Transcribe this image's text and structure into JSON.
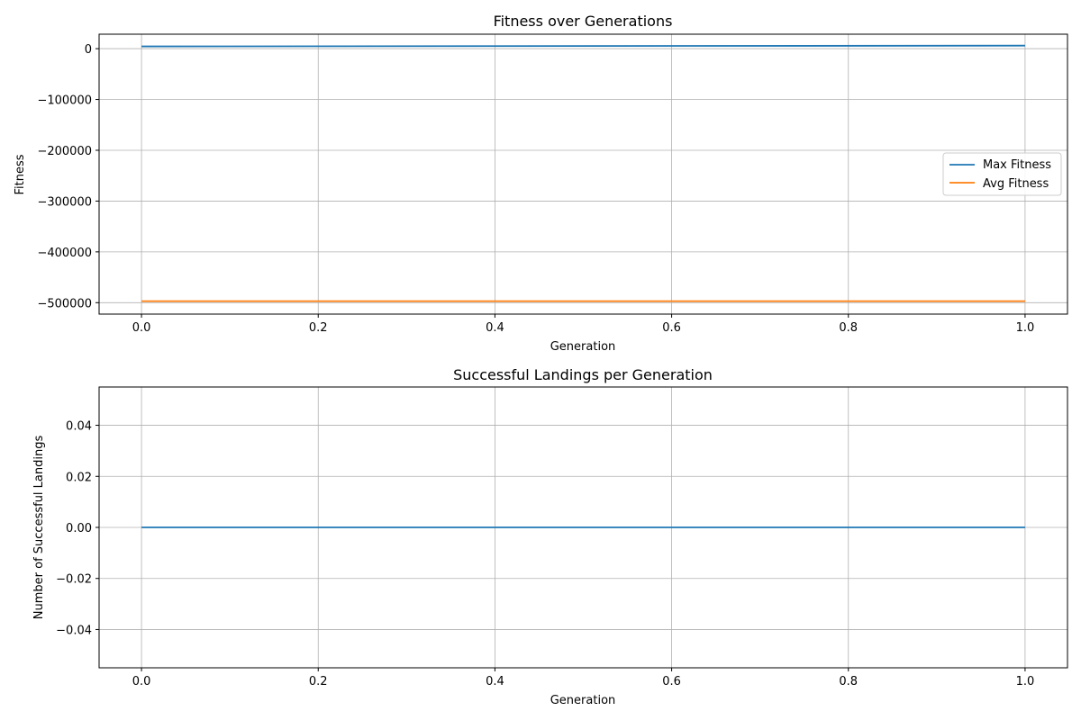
{
  "chart_data": [
    {
      "type": "line",
      "title": "Fitness over Generations",
      "xlabel": "Generation",
      "ylabel": "Fitness",
      "xlim": [
        -0.048,
        1.048
      ],
      "ylim": [
        -522500,
        28500
      ],
      "xticks": [
        0.0,
        0.2,
        0.4,
        0.6,
        0.8,
        1.0
      ],
      "xtick_labels": [
        "0.0",
        "0.2",
        "0.4",
        "0.6",
        "0.8",
        "1.0"
      ],
      "yticks": [
        0,
        -100000,
        -200000,
        -300000,
        -400000,
        -500000
      ],
      "ytick_labels": [
        "0",
        "−100000",
        "−200000",
        "−300000",
        "−400000",
        "−500000"
      ],
      "grid": true,
      "legend": "center-right",
      "x": [
        0,
        1
      ],
      "series": [
        {
          "name": "Max Fitness",
          "color": "#1f77b4",
          "values": [
            4500,
            6000
          ]
        },
        {
          "name": "Avg Fitness",
          "color": "#ff7f0e",
          "values": [
            -497000,
            -497000
          ]
        }
      ]
    },
    {
      "type": "line",
      "title": "Successful Landings per Generation",
      "xlabel": "Generation",
      "ylabel": "Number of Successful Landings",
      "xlim": [
        -0.048,
        1.048
      ],
      "ylim": [
        -0.055,
        0.055
      ],
      "xticks": [
        0.0,
        0.2,
        0.4,
        0.6,
        0.8,
        1.0
      ],
      "xtick_labels": [
        "0.0",
        "0.2",
        "0.4",
        "0.6",
        "0.8",
        "1.0"
      ],
      "yticks": [
        0.04,
        0.02,
        0.0,
        -0.02,
        -0.04
      ],
      "ytick_labels": [
        "0.04",
        "0.02",
        "0.00",
        "−0.02",
        "−0.04"
      ],
      "grid": true,
      "legend": "none",
      "x": [
        0,
        1
      ],
      "series": [
        {
          "color": "#1f77b4",
          "values": [
            0,
            0
          ]
        }
      ]
    }
  ]
}
